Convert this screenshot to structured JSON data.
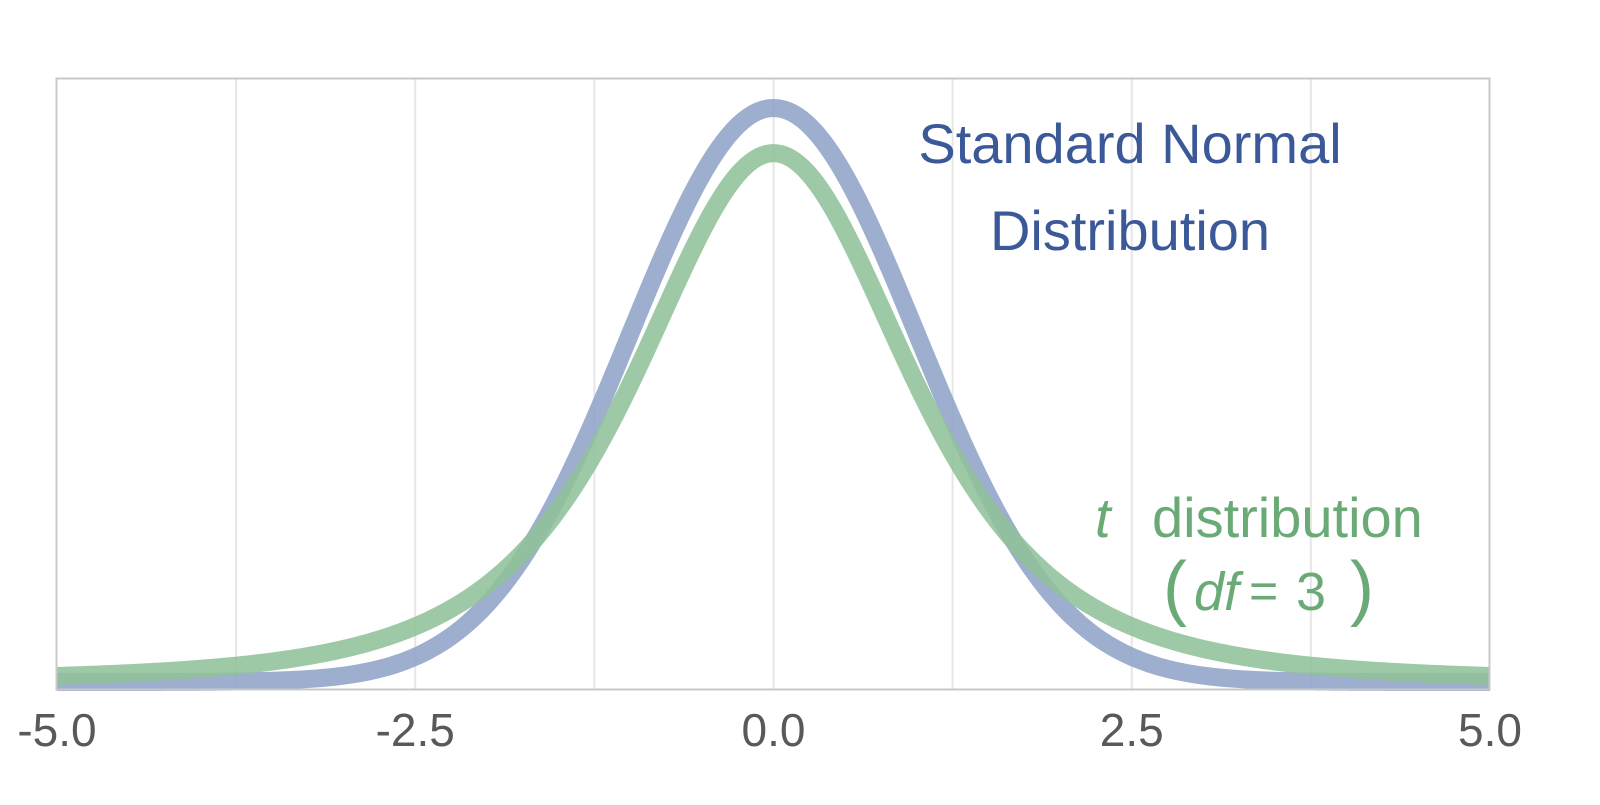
{
  "chart_data": {
    "type": "line",
    "title": "",
    "xlabel": "",
    "ylabel": "",
    "xlim": [
      -5.0,
      5.0
    ],
    "ylim": [
      0,
      0.42
    ],
    "x_ticks": [
      -5.0,
      -2.5,
      0.0,
      2.5,
      5.0
    ],
    "x_tick_labels": [
      "-5.0",
      "-2.5",
      "0.0",
      "2.5",
      "5.0"
    ],
    "minor_gridlines_x": [
      -3.75,
      -1.25,
      1.25,
      3.75
    ],
    "grid": true,
    "y_axis_visible": false,
    "x": [
      -5.0,
      -4.5,
      -4.0,
      -3.5,
      -3.0,
      -2.5,
      -2.0,
      -1.75,
      -1.5,
      -1.25,
      -1.0,
      -0.75,
      -0.5,
      -0.25,
      0.0,
      0.25,
      0.5,
      0.75,
      1.0,
      1.25,
      1.5,
      1.75,
      2.0,
      2.5,
      3.0,
      3.5,
      4.0,
      4.5,
      5.0
    ],
    "series": [
      {
        "name": "Standard Normal Distribution",
        "color": "#8fa3c8",
        "values": [
          1.5e-06,
          1.6e-05,
          0.000134,
          0.000873,
          0.004432,
          0.017528,
          0.053991,
          0.086277,
          0.129518,
          0.182649,
          0.241971,
          0.301137,
          0.352065,
          0.386668,
          0.398942,
          0.386668,
          0.352065,
          0.301137,
          0.241971,
          0.182649,
          0.129518,
          0.086277,
          0.053991,
          0.017528,
          0.004432,
          0.000873,
          0.000134,
          1.6e-05,
          1.5e-06
        ]
      },
      {
        "name": "t distribution (df = 3)",
        "color": "#90c29a",
        "values": [
          0.00422,
          0.005756,
          0.009163,
          0.01411,
          0.022972,
          0.038941,
          0.06751,
          0.08986,
          0.118796,
          0.155115,
          0.206748,
          0.25438,
          0.31456,
          0.3502,
          0.367553,
          0.3502,
          0.31456,
          0.25438,
          0.206748,
          0.155115,
          0.118796,
          0.08986,
          0.06751,
          0.038941,
          0.022972,
          0.01411,
          0.009163,
          0.005756,
          0.00422
        ]
      }
    ],
    "annotations": [
      {
        "series": "Standard Normal Distribution",
        "lines": [
          "Standard Normal",
          "Distribution"
        ],
        "color": "#3b5998"
      },
      {
        "series": "t distribution (df = 3)",
        "lines": [
          "t  distribution",
          "(df = 3)"
        ],
        "color": "#6aaa76"
      }
    ]
  },
  "colors": {
    "axis": "#c8c8c8",
    "gridline": "#e6e6e6",
    "tick_label": "#595959",
    "normal_text": "#3b5998",
    "t_text": "#6aaa76"
  },
  "text": {
    "normal_line1": "Standard Normal",
    "normal_line2": "Distribution",
    "t_italic": "t",
    "t_word": "distribution",
    "df_open": "(",
    "df_var": "df",
    "df_eq": "=",
    "df_val": "3",
    "df_close": ")"
  }
}
